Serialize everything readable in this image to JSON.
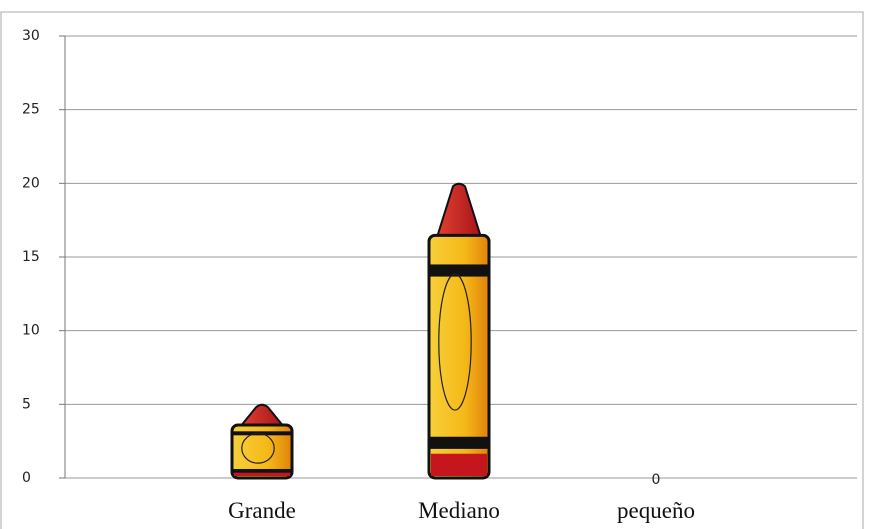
{
  "chart_data": {
    "type": "bar",
    "categories": [
      "Grande",
      "Mediano",
      "pequeño"
    ],
    "values": [
      5,
      20,
      0
    ],
    "color": "#f5c518",
    "ylim": [
      0,
      30
    ],
    "yticks": [
      0,
      5,
      10,
      15,
      20,
      25,
      30
    ],
    "grid": true
  }
}
